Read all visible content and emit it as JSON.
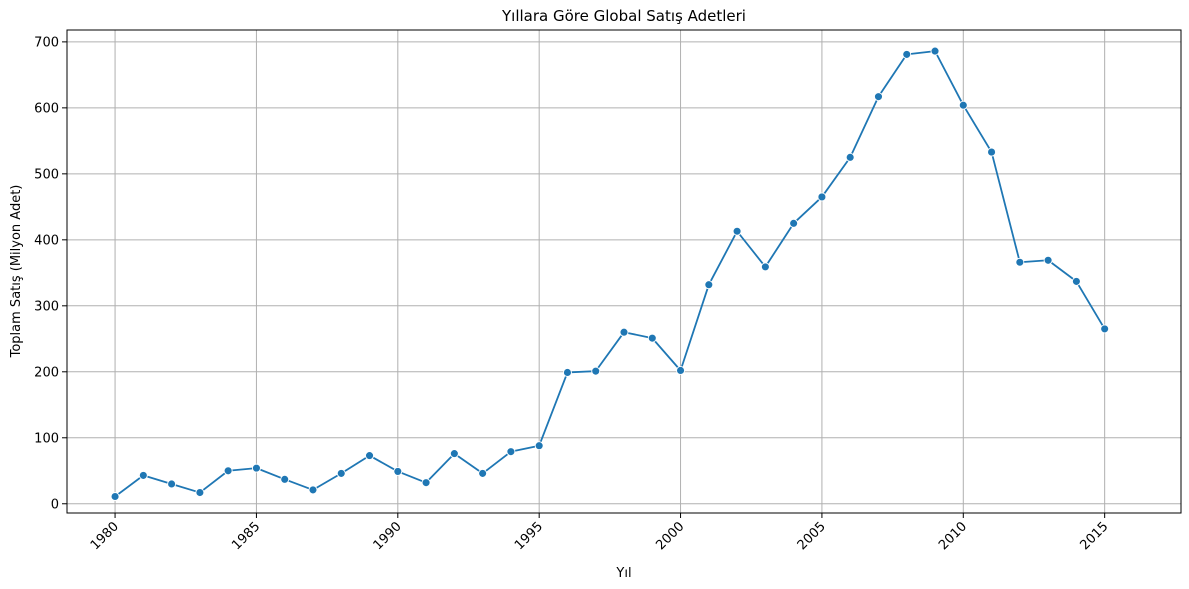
{
  "chart_data": {
    "type": "line",
    "title": "Yıllara Göre Global Satış Adetleri",
    "xlabel": "Yıl",
    "ylabel": "Toplam Satış (Milyon Adet)",
    "xlim": [
      1978.3,
      2017.7
    ],
    "ylim": [
      -14,
      718
    ],
    "xticks": [
      1980,
      1985,
      1990,
      1995,
      2000,
      2005,
      2010,
      2015
    ],
    "yticks": [
      0,
      100,
      200,
      300,
      400,
      500,
      600,
      700
    ],
    "xtick_rotation": 45,
    "grid": true,
    "legend": "none",
    "series": [
      {
        "color": "#1f77b4",
        "x": [
          1980,
          1981,
          1982,
          1983,
          1984,
          1985,
          1986,
          1987,
          1988,
          1989,
          1990,
          1991,
          1992,
          1993,
          1994,
          1995,
          1996,
          1997,
          1998,
          1999,
          2000,
          2001,
          2002,
          2003,
          2004,
          2005,
          2006,
          2007,
          2008,
          2009,
          2010,
          2011,
          2012,
          2013,
          2014,
          2015
        ],
        "y": [
          11,
          43,
          30,
          17,
          50,
          54,
          37,
          21,
          46,
          73,
          49,
          32,
          76,
          46,
          79,
          88,
          199,
          201,
          260,
          251,
          202,
          332,
          413,
          359,
          425,
          465,
          525,
          617,
          681,
          686,
          604,
          533,
          366,
          369,
          337,
          265
        ]
      }
    ]
  }
}
